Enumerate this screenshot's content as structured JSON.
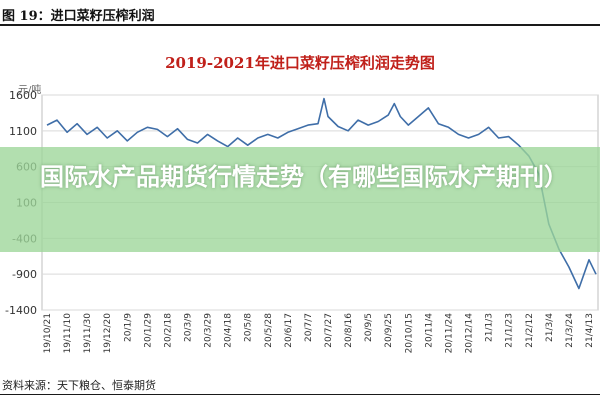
{
  "figure_label": "图 19：进口菜籽压榨利润",
  "source_note": "资料来源：天下粮仓、恒泰期货",
  "banner_text": "国际水产品期货行情走势（有哪些国际水产期刊）",
  "chart_data": {
    "type": "line",
    "title": "2019-2021年进口菜籽压榨利润走势图",
    "unit_label": "元/吨",
    "ylim": [
      -1400,
      1600
    ],
    "yticks": [
      1600,
      1100,
      600,
      100,
      -400,
      -900,
      -1400
    ],
    "grid": true,
    "series_color": "#3f6ea8",
    "x_tick_labels": [
      "19/10/21",
      "19/11/10",
      "19/11/30",
      "19/12/20",
      "20/1/9",
      "20/1/29",
      "20/2/18",
      "20/3/9",
      "20/3/29",
      "20/4/18",
      "20/5/8",
      "20/5/28",
      "20/6/17",
      "20/7/7",
      "20/7/27",
      "20/8/16",
      "20/9/5",
      "20/9/25",
      "20/10/15",
      "20/11/4",
      "20/11/24",
      "20/12/14",
      "21/1/3",
      "21/1/23",
      "21/2/12",
      "21/3/4",
      "21/3/24",
      "21/4/13"
    ],
    "series": [
      {
        "values": [
          {
            "x": "2019-10-21",
            "y": 1180
          },
          {
            "x": "2019-10-31",
            "y": 1250
          },
          {
            "x": "2019-11-10",
            "y": 1080
          },
          {
            "x": "2019-11-20",
            "y": 1200
          },
          {
            "x": "2019-11-30",
            "y": 1050
          },
          {
            "x": "2019-12-10",
            "y": 1150
          },
          {
            "x": "2019-12-20",
            "y": 1000
          },
          {
            "x": "2019-12-30",
            "y": 1100
          },
          {
            "x": "2020-01-09",
            "y": 960
          },
          {
            "x": "2020-01-19",
            "y": 1080
          },
          {
            "x": "2020-01-29",
            "y": 1150
          },
          {
            "x": "2020-02-08",
            "y": 1120
          },
          {
            "x": "2020-02-18",
            "y": 1020
          },
          {
            "x": "2020-02-28",
            "y": 1130
          },
          {
            "x": "2020-03-09",
            "y": 980
          },
          {
            "x": "2020-03-19",
            "y": 930
          },
          {
            "x": "2020-03-29",
            "y": 1050
          },
          {
            "x": "2020-04-08",
            "y": 960
          },
          {
            "x": "2020-04-18",
            "y": 880
          },
          {
            "x": "2020-04-28",
            "y": 1000
          },
          {
            "x": "2020-05-08",
            "y": 900
          },
          {
            "x": "2020-05-18",
            "y": 1000
          },
          {
            "x": "2020-05-28",
            "y": 1050
          },
          {
            "x": "2020-06-07",
            "y": 1000
          },
          {
            "x": "2020-06-17",
            "y": 1080
          },
          {
            "x": "2020-06-27",
            "y": 1130
          },
          {
            "x": "2020-07-07",
            "y": 1180
          },
          {
            "x": "2020-07-17",
            "y": 1200
          },
          {
            "x": "2020-07-23",
            "y": 1550
          },
          {
            "x": "2020-07-27",
            "y": 1300
          },
          {
            "x": "2020-08-06",
            "y": 1160
          },
          {
            "x": "2020-08-16",
            "y": 1100
          },
          {
            "x": "2020-08-26",
            "y": 1250
          },
          {
            "x": "2020-09-05",
            "y": 1180
          },
          {
            "x": "2020-09-15",
            "y": 1230
          },
          {
            "x": "2020-09-25",
            "y": 1320
          },
          {
            "x": "2020-10-01",
            "y": 1480
          },
          {
            "x": "2020-10-07",
            "y": 1300
          },
          {
            "x": "2020-10-15",
            "y": 1180
          },
          {
            "x": "2020-10-25",
            "y": 1300
          },
          {
            "x": "2020-11-04",
            "y": 1420
          },
          {
            "x": "2020-11-14",
            "y": 1200
          },
          {
            "x": "2020-11-24",
            "y": 1150
          },
          {
            "x": "2020-12-04",
            "y": 1050
          },
          {
            "x": "2020-12-14",
            "y": 1000
          },
          {
            "x": "2020-12-24",
            "y": 1050
          },
          {
            "x": "2021-01-03",
            "y": 1150
          },
          {
            "x": "2021-01-13",
            "y": 1000
          },
          {
            "x": "2021-01-23",
            "y": 1020
          },
          {
            "x": "2021-02-02",
            "y": 900
          },
          {
            "x": "2021-02-12",
            "y": 750
          },
          {
            "x": "2021-02-22",
            "y": 500
          },
          {
            "x": "2021-03-04",
            "y": -200
          },
          {
            "x": "2021-03-14",
            "y": -550
          },
          {
            "x": "2021-03-24",
            "y": -800
          },
          {
            "x": "2021-04-03",
            "y": -1100
          },
          {
            "x": "2021-04-13",
            "y": -700
          },
          {
            "x": "2021-04-20",
            "y": -900
          }
        ]
      }
    ]
  }
}
